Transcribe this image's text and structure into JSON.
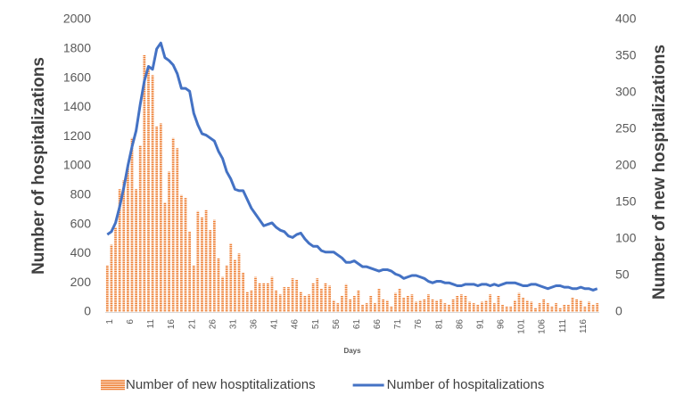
{
  "chart_data": {
    "type": "bar-line",
    "x_label": "Days",
    "y_label": "Number of hospitalizations",
    "y2_label": "Number of new hospitalizations",
    "ylim": [
      0,
      2000
    ],
    "yticks": [
      0,
      200,
      400,
      600,
      800,
      1000,
      1200,
      1400,
      1600,
      1800,
      2000
    ],
    "y2lim": [
      0,
      400
    ],
    "y2ticks": [
      0,
      50,
      100,
      150,
      200,
      250,
      300,
      350,
      400
    ],
    "grid": false,
    "legend": "bottom",
    "categories": [
      "1",
      null,
      null,
      null,
      null,
      "6",
      null,
      null,
      null,
      null,
      "11",
      null,
      null,
      null,
      null,
      "16",
      null,
      null,
      null,
      null,
      "21",
      null,
      null,
      null,
      null,
      "26",
      null,
      null,
      null,
      null,
      "31",
      null,
      null,
      null,
      null,
      "36",
      null,
      null,
      null,
      null,
      "41",
      null,
      null,
      null,
      null,
      "46",
      null,
      null,
      null,
      null,
      "51",
      null,
      null,
      null,
      null,
      "56",
      null,
      null,
      null,
      null,
      "61",
      null,
      null,
      null,
      null,
      "66",
      null,
      null,
      null,
      null,
      "71",
      null,
      null,
      null,
      null,
      "76",
      null,
      null,
      null,
      null,
      "81",
      null,
      null,
      null,
      null,
      "86",
      null,
      null,
      null,
      null,
      "91",
      null,
      null,
      null,
      null,
      "96",
      null,
      null,
      null,
      null,
      "101",
      null,
      null,
      null,
      null,
      "106",
      null,
      null,
      null,
      null,
      "111",
      null,
      null,
      null,
      null,
      "116",
      null,
      null,
      null,
      null
    ],
    "series": [
      {
        "name": "Number of new hosptitalizations",
        "type": "bar",
        "axis": "y2",
        "color": "#ed7d31",
        "values": [
          64,
          92,
          116,
          168,
          180,
          200,
          238,
          168,
          228,
          352,
          336,
          324,
          254,
          258,
          150,
          192,
          238,
          224,
          160,
          156,
          110,
          64,
          138,
          130,
          140,
          112,
          126,
          74,
          48,
          64,
          94,
          72,
          80,
          54,
          28,
          30,
          48,
          40,
          40,
          40,
          48,
          30,
          24,
          34,
          34,
          46,
          44,
          28,
          22,
          24,
          40,
          46,
          32,
          40,
          36,
          16,
          12,
          22,
          38,
          18,
          22,
          30,
          10,
          12,
          22,
          12,
          32,
          18,
          16,
          8,
          26,
          32,
          20,
          22,
          24,
          14,
          16,
          18,
          24,
          18,
          16,
          18,
          12,
          10,
          18,
          22,
          24,
          22,
          14,
          12,
          10,
          14,
          16,
          24,
          12,
          22,
          10,
          8,
          8,
          16,
          26,
          20,
          16,
          14,
          6,
          12,
          18,
          12,
          8,
          12,
          6,
          10,
          10,
          20,
          18,
          16,
          8,
          14,
          10,
          12
        ]
      },
      {
        "name": "Number of hospitalizations",
        "type": "line",
        "axis": "y",
        "color": "#4472c4",
        "values": [
          530,
          550,
          610,
          720,
          850,
          1000,
          1130,
          1240,
          1420,
          1580,
          1680,
          1660,
          1800,
          1840,
          1740,
          1720,
          1690,
          1630,
          1530,
          1530,
          1510,
          1360,
          1280,
          1220,
          1210,
          1190,
          1170,
          1100,
          1050,
          960,
          910,
          840,
          830,
          830,
          770,
          710,
          670,
          630,
          590,
          600,
          610,
          580,
          560,
          550,
          520,
          510,
          530,
          540,
          500,
          470,
          450,
          450,
          420,
          410,
          410,
          410,
          390,
          370,
          340,
          340,
          350,
          330,
          310,
          310,
          300,
          290,
          280,
          290,
          290,
          280,
          260,
          250,
          230,
          240,
          250,
          250,
          240,
          230,
          210,
          200,
          210,
          210,
          200,
          200,
          190,
          180,
          180,
          190,
          190,
          190,
          180,
          190,
          190,
          180,
          190,
          180,
          190,
          200,
          200,
          200,
          190,
          180,
          180,
          190,
          190,
          180,
          170,
          160,
          170,
          180,
          180,
          170,
          170,
          160,
          160,
          170,
          160,
          160,
          150,
          160
        ]
      }
    ]
  }
}
